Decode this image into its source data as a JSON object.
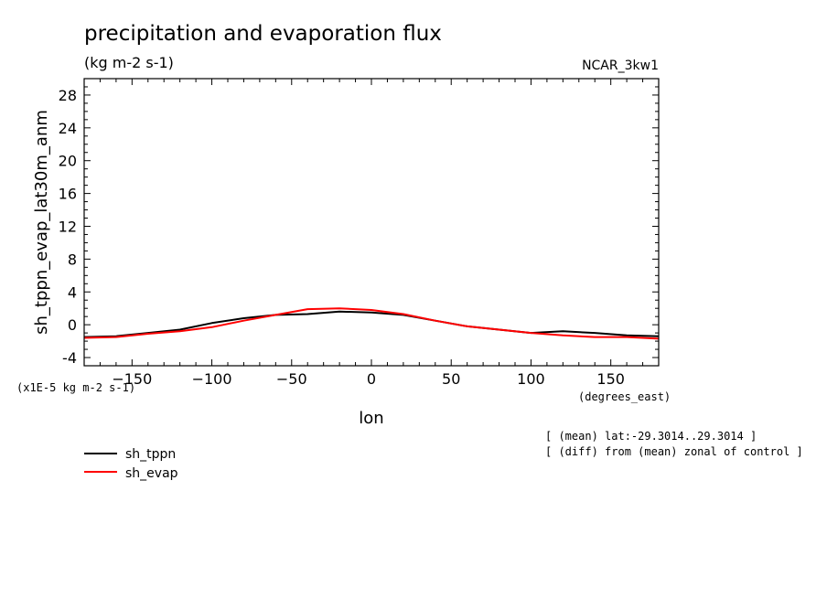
{
  "chart_data": {
    "type": "line",
    "title": "precipitation and evaporation flux",
    "units": "(kg m-2 s-1)",
    "model_label": "NCAR_3kw1",
    "xlabel": "lon",
    "x_units": "(degrees_east)",
    "ylabel": "sh_tppn_evap_lat30m_anm",
    "y_units": "(x1E-5 kg m-2 s-1)",
    "xlim": [
      -180,
      180
    ],
    "ylim": [
      -5,
      30
    ],
    "x_ticks": [
      -150,
      -100,
      -50,
      0,
      50,
      100,
      150
    ],
    "y_ticks": [
      -4,
      0,
      4,
      8,
      12,
      16,
      20,
      24,
      28
    ],
    "notes": [
      "[ (mean) lat:-29.3014..29.3014 ]",
      "[ (diff) from (mean) zonal of control ]"
    ],
    "x": [
      -180,
      -160,
      -140,
      -120,
      -100,
      -80,
      -60,
      -40,
      -20,
      0,
      20,
      40,
      60,
      80,
      100,
      120,
      140,
      160,
      180
    ],
    "series": [
      {
        "name": "sh_tppn",
        "color": "#000000",
        "values": [
          -1.5,
          -1.4,
          -1.0,
          -0.6,
          0.2,
          0.8,
          1.2,
          1.3,
          1.6,
          1.5,
          1.2,
          0.5,
          -0.2,
          -0.6,
          -1.0,
          -0.8,
          -1.0,
          -1.3,
          -1.4
        ]
      },
      {
        "name": "sh_evap",
        "color": "#ff0000",
        "values": [
          -1.6,
          -1.5,
          -1.1,
          -0.8,
          -0.3,
          0.5,
          1.2,
          1.9,
          2.0,
          1.8,
          1.3,
          0.5,
          -0.2,
          -0.6,
          -1.0,
          -1.3,
          -1.5,
          -1.5,
          -1.7
        ]
      }
    ]
  }
}
